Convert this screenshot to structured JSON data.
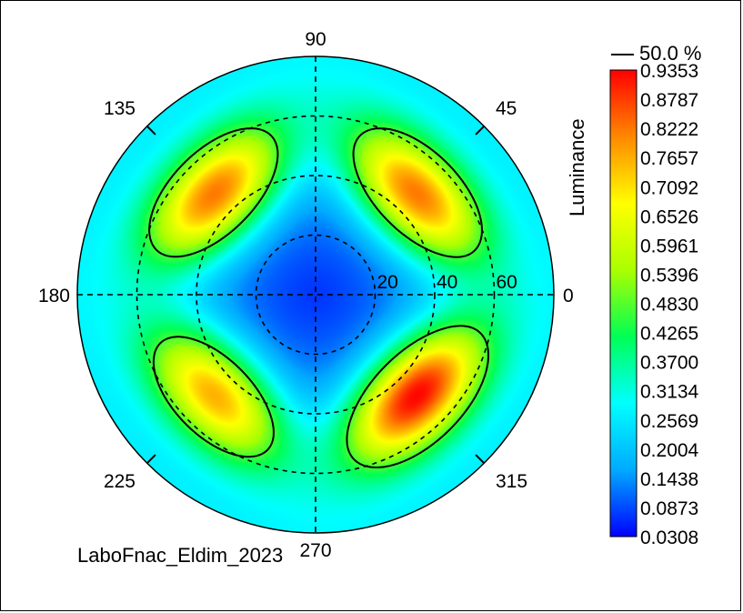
{
  "chart_data": {
    "type": "heatmap",
    "subtype": "polar-conoscope",
    "quantity_label": "Luminance",
    "footer_text": "LaboFnac_Eldim_2023",
    "angle_labels": [
      "0",
      "45",
      "90",
      "135",
      "180",
      "225",
      "270",
      "315"
    ],
    "radial_labels": [
      "20",
      "40",
      "60"
    ],
    "radial_values": [
      20,
      40,
      60
    ],
    "radial_max": 80,
    "grid": true,
    "contour_label": "50.0 %",
    "contour_level": 0.4676,
    "colorbar_ticks": [
      "0.9353",
      "0.8787",
      "0.8222",
      "0.7657",
      "0.7092",
      "0.6526",
      "0.5961",
      "0.5396",
      "0.4830",
      "0.4265",
      "0.3700",
      "0.3134",
      "0.2569",
      "0.2004",
      "0.1438",
      "0.0873",
      "0.0308"
    ],
    "range": [
      0.0308,
      0.9353
    ],
    "colormap": [
      "#0000ff",
      "#00aaff",
      "#00ffff",
      "#00ff55",
      "#aaff00",
      "#ffff00",
      "#ff8800",
      "#ff0000"
    ],
    "lobes": [
      {
        "azimuth": 45,
        "inclination": 48,
        "peak": 0.82
      },
      {
        "azimuth": 135,
        "inclination": 48,
        "peak": 0.82
      },
      {
        "azimuth": 225,
        "inclination": 48,
        "peak": 0.76
      },
      {
        "azimuth": 315,
        "inclination": 48,
        "peak": 0.93
      }
    ],
    "center_value": 0.07,
    "edge_value": 0.26
  }
}
